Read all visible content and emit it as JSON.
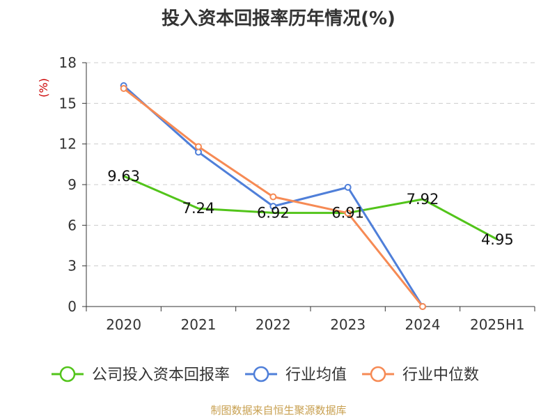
{
  "chart_data": {
    "type": "line",
    "title": "投入资本回报率历年情况(%)",
    "ylabel": "(%)",
    "xlabel": "",
    "categories": [
      "2020",
      "2021",
      "2022",
      "2023",
      "2024",
      "2025H1"
    ],
    "ylim": [
      0,
      18
    ],
    "yticks": [
      0,
      3,
      6,
      9,
      12,
      15,
      18
    ],
    "grid": true,
    "legend_position": "bottom",
    "series": [
      {
        "name": "公司投入资本回报率",
        "color": "#52c41a",
        "values": [
          9.63,
          7.24,
          6.92,
          6.91,
          7.92,
          4.95
        ],
        "labels": [
          "9.63",
          "7.24",
          "6.92",
          "6.91",
          "7.92",
          "4.95"
        ]
      },
      {
        "name": "行业均值",
        "color": "#4f7fd9",
        "values": [
          16.3,
          11.4,
          7.4,
          8.8,
          0.0,
          null
        ]
      },
      {
        "name": "行业中位数",
        "color": "#f68a54",
        "values": [
          16.1,
          11.8,
          8.1,
          6.9,
          0.0,
          null
        ]
      }
    ]
  },
  "footer": {
    "source": "制图数据来自恒生聚源数据库"
  }
}
